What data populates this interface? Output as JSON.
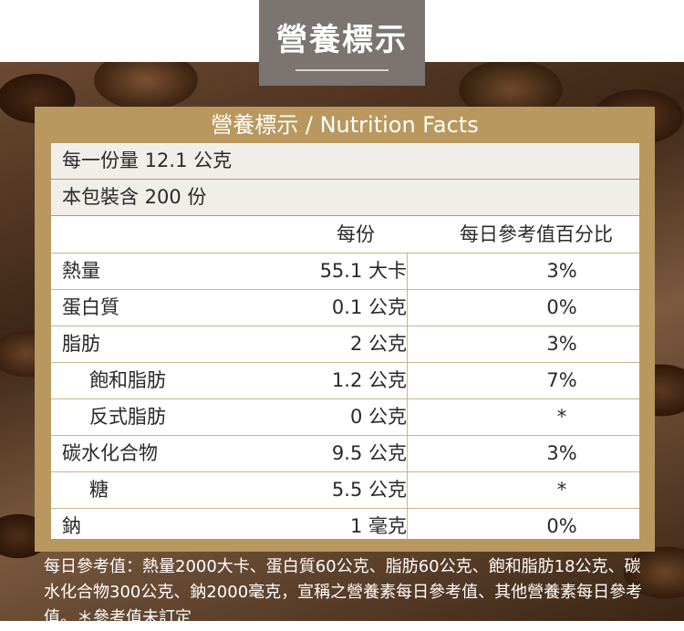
{
  "header": {
    "title": "營養標示"
  },
  "panel": {
    "title": "營養標示 / Nutrition Facts"
  },
  "serving_size": "每一份量 12.1 公克",
  "servings_per_package": "本包裝含 200 份",
  "columns": {
    "per_serving": "每份",
    "daily_value": "每日參考值百分比"
  },
  "rows": [
    {
      "name": "熱量",
      "per": "55.1 大卡",
      "dv": "3%"
    },
    {
      "name": "蛋白質",
      "per": "0.1 公克",
      "dv": "0%"
    },
    {
      "name": "脂肪",
      "per": "2 公克",
      "dv": "3%"
    },
    {
      "name": "飽和脂肪",
      "per": "1.2 公克",
      "dv": "7%"
    },
    {
      "name": "反式脂肪",
      "per": "0 公克",
      "dv": "*"
    },
    {
      "name": "碳水化合物",
      "per": "9.5 公克",
      "dv": "3%"
    },
    {
      "name": "糖",
      "per": "5.5 公克",
      "dv": "*"
    },
    {
      "name": "鈉",
      "per": "1 毫克",
      "dv": "0%"
    }
  ],
  "footnote": "每日參考值：熱量2000大卡、蛋白質60公克、脂肪60公克、飽和脂肪18公克、碳水化合物300公克、鈉2000毫克，宣稱之營養素每日參考值、其他營養素每日參考值。＊參考值未訂定"
}
